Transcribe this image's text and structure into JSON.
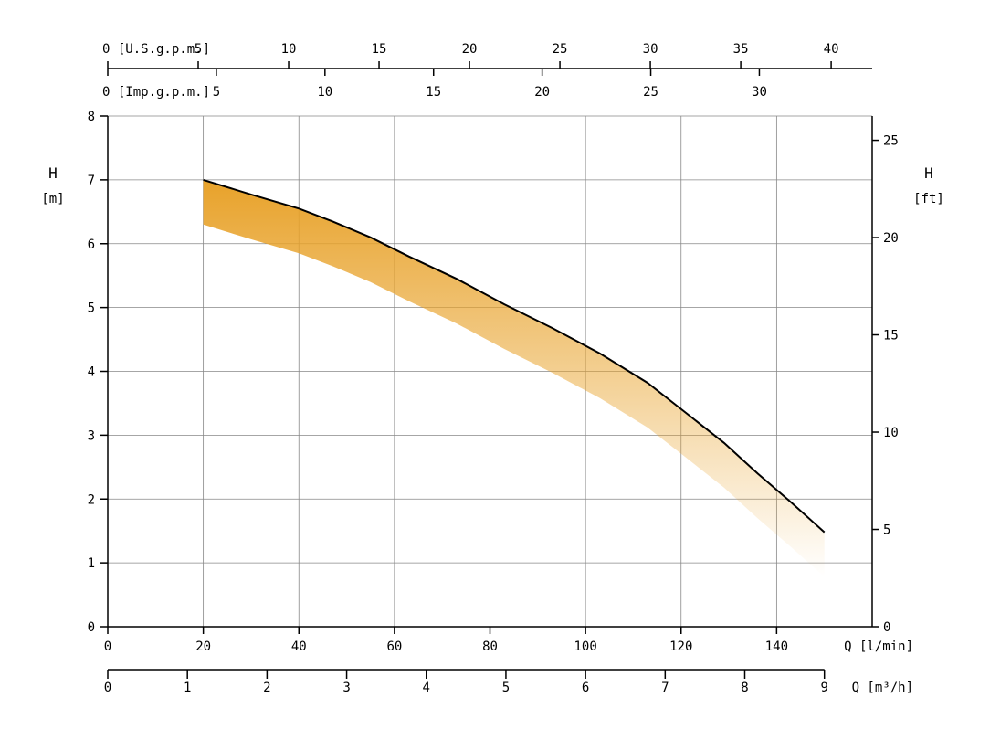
{
  "chart_data": {
    "type": "area",
    "title": "",
    "xlabel": "Q [l/min]",
    "ylabel": "H [m]",
    "xlim": [
      0,
      160
    ],
    "ylim": [
      0,
      8
    ],
    "x_ticks": [
      0,
      20,
      40,
      60,
      80,
      100,
      120,
      140
    ],
    "y_ticks": [
      0,
      1,
      2,
      3,
      4,
      5,
      6,
      7,
      8
    ],
    "grid": true,
    "series": [
      {
        "x": [
          20,
          30,
          40,
          47,
          55,
          63,
          73,
          83,
          93,
          103,
          113,
          121,
          129,
          136,
          143,
          150
        ],
        "y": [
          7.0,
          6.77,
          6.55,
          6.35,
          6.1,
          5.8,
          5.45,
          5.05,
          4.68,
          4.28,
          3.82,
          3.35,
          2.88,
          2.4,
          1.95,
          1.48
        ]
      }
    ],
    "band_below_m": 0.7,
    "colors": {
      "curve": "#000000",
      "band": "#e8a22a",
      "grid": "#888888"
    },
    "right_axis": {
      "label_top": "H",
      "label_bottom": "[ft]",
      "ticks": [
        0,
        5,
        10,
        15,
        20,
        25
      ],
      "m_per_unit": 0.3048
    },
    "bottom_axis_m3h": {
      "label": "Q [m³/h]",
      "ticks": [
        0,
        1,
        2,
        3,
        4,
        5,
        6,
        7,
        8,
        9
      ],
      "lmin_per_unit": 16.6667
    },
    "top_axis_usgpm": {
      "label": "[U.S.g.p.m.]",
      "zero_label": "0",
      "ticks": [
        5,
        10,
        15,
        20,
        25,
        30,
        35,
        40
      ],
      "lmin_per_unit": 3.78541
    },
    "top_axis_impgpm": {
      "label": "[Imp.g.p.m.]",
      "zero_label": "0",
      "ticks": [
        5,
        10,
        15,
        20,
        25,
        30
      ],
      "lmin_per_unit": 4.54609
    },
    "left_axis_labels": {
      "top": "H",
      "bottom": "[m]"
    },
    "x_axis_label": "Q [l/min]"
  }
}
